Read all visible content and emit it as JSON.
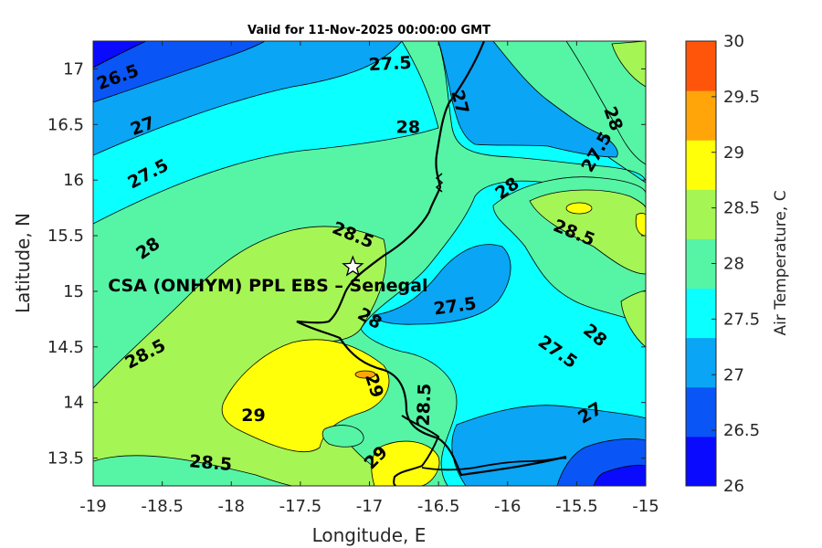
{
  "chart_data": {
    "type": "contour",
    "title": "Valid for 11-Nov-2025 00:00:00 GMT",
    "xlabel": "Longitude, E",
    "ylabel": "Latitude, N",
    "xlim": [
      -19,
      -15
    ],
    "ylim": [
      13.25,
      17.25
    ],
    "x_ticks": [
      "-19",
      "-18.5",
      "-18",
      "-17.5",
      "-17",
      "-16.5",
      "-16",
      "-15.5",
      "-15"
    ],
    "y_ticks": [
      "13.5",
      "14",
      "14.5",
      "15",
      "15.5",
      "16",
      "16.5",
      "17"
    ],
    "colorbar": {
      "label": "Air Temperature, C",
      "min": 26,
      "max": 30,
      "ticks": [
        "26",
        "26.5",
        "27",
        "27.5",
        "28",
        "28.5",
        "29",
        "29.5",
        "30"
      ],
      "colors": [
        "#0a0aff",
        "#0a55f5",
        "#0aa5f5",
        "#0affff",
        "#55f5a5",
        "#a5f555",
        "#ffff0a",
        "#ffa50a",
        "#ff550a"
      ]
    },
    "site": {
      "name": "CSA (ONHYM) PPL EBS  – Senegal",
      "lon": -17.12,
      "lat": 15.22
    },
    "contour_labels": [
      {
        "text": "26.5",
        "lon": -18.82,
        "lat": 16.92,
        "rot": -20
      },
      {
        "text": "27",
        "lon": -18.64,
        "lat": 16.48,
        "rot": -20
      },
      {
        "text": "27.5",
        "lon": -18.6,
        "lat": 16.05,
        "rot": -28
      },
      {
        "text": "28",
        "lon": -18.6,
        "lat": 15.38,
        "rot": -35
      },
      {
        "text": "28.5",
        "lon": -18.62,
        "lat": 14.43,
        "rot": -28
      },
      {
        "text": "29",
        "lon": -17.84,
        "lat": 13.88,
        "rot": 0
      },
      {
        "text": "28.5",
        "lon": -18.15,
        "lat": 13.45,
        "rot": 5
      },
      {
        "text": "27.5",
        "lon": -16.85,
        "lat": 17.04,
        "rot": -3
      },
      {
        "text": "28",
        "lon": -16.72,
        "lat": 16.47,
        "rot": 0
      },
      {
        "text": "28.5",
        "lon": -17.12,
        "lat": 15.5,
        "rot": 22
      },
      {
        "text": "28",
        "lon": -17.0,
        "lat": 14.75,
        "rot": 30
      },
      {
        "text": "29",
        "lon": -16.97,
        "lat": 14.15,
        "rot": 72
      },
      {
        "text": "28.5",
        "lon": -16.6,
        "lat": 13.98,
        "rot": -88
      },
      {
        "text": "29",
        "lon": -16.95,
        "lat": 13.5,
        "rot": -45
      },
      {
        "text": "27",
        "lon": -16.35,
        "lat": 16.7,
        "rot": 75
      },
      {
        "text": "27.5",
        "lon": -16.38,
        "lat": 14.86,
        "rot": -8
      },
      {
        "text": "28",
        "lon": -16.0,
        "lat": 15.92,
        "rot": -35
      },
      {
        "text": "28.5",
        "lon": -15.52,
        "lat": 15.52,
        "rot": 22
      },
      {
        "text": "28",
        "lon": -15.24,
        "lat": 16.55,
        "rot": 70
      },
      {
        "text": "27.5",
        "lon": -15.35,
        "lat": 16.25,
        "rot": -60
      },
      {
        "text": "28",
        "lon": -15.37,
        "lat": 14.6,
        "rot": 40
      },
      {
        "text": "27.5",
        "lon": -15.64,
        "lat": 14.45,
        "rot": 35
      },
      {
        "text": "27",
        "lon": -15.4,
        "lat": 13.9,
        "rot": -30
      }
    ]
  }
}
